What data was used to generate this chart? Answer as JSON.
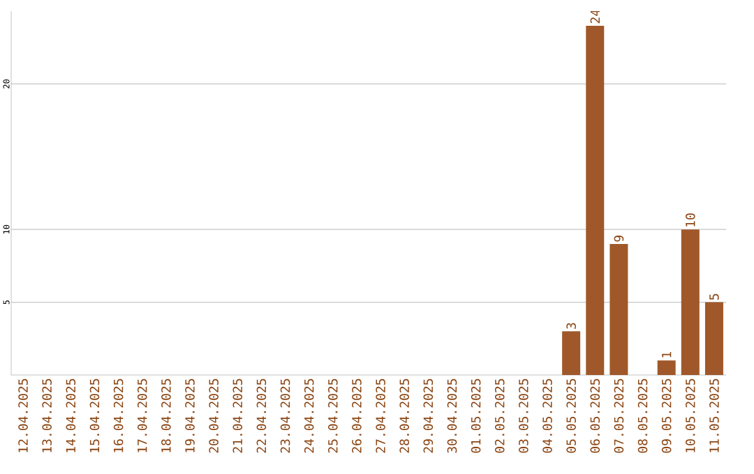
{
  "chart_data": {
    "type": "bar",
    "categories": [
      "12.04.2025",
      "13.04.2025",
      "14.04.2025",
      "15.04.2025",
      "16.04.2025",
      "17.04.2025",
      "18.04.2025",
      "19.04.2025",
      "20.04.2025",
      "21.04.2025",
      "22.04.2025",
      "23.04.2025",
      "24.04.2025",
      "25.04.2025",
      "26.04.2025",
      "27.04.2025",
      "28.04.2025",
      "29.04.2025",
      "30.04.2025",
      "01.05.2025",
      "02.05.2025",
      "03.05.2025",
      "04.05.2025",
      "05.05.2025",
      "06.05.2025",
      "07.05.2025",
      "08.05.2025",
      "09.05.2025",
      "10.05.2025",
      "11.05.2025"
    ],
    "values": [
      0,
      0,
      0,
      0,
      0,
      0,
      0,
      0,
      0,
      0,
      0,
      0,
      0,
      0,
      0,
      0,
      0,
      0,
      0,
      0,
      0,
      0,
      0,
      3,
      24,
      9,
      0,
      1,
      10,
      5
    ],
    "value_labels": [
      null,
      null,
      null,
      null,
      null,
      null,
      null,
      null,
      null,
      null,
      null,
      null,
      null,
      null,
      null,
      null,
      null,
      null,
      null,
      null,
      null,
      null,
      null,
      "3",
      "24",
      "9",
      null,
      "1",
      "10",
      "5"
    ],
    "color": "#a0582a",
    "ylim": [
      0,
      25
    ],
    "yticks": [
      5,
      10,
      20
    ],
    "grid": "y"
  }
}
